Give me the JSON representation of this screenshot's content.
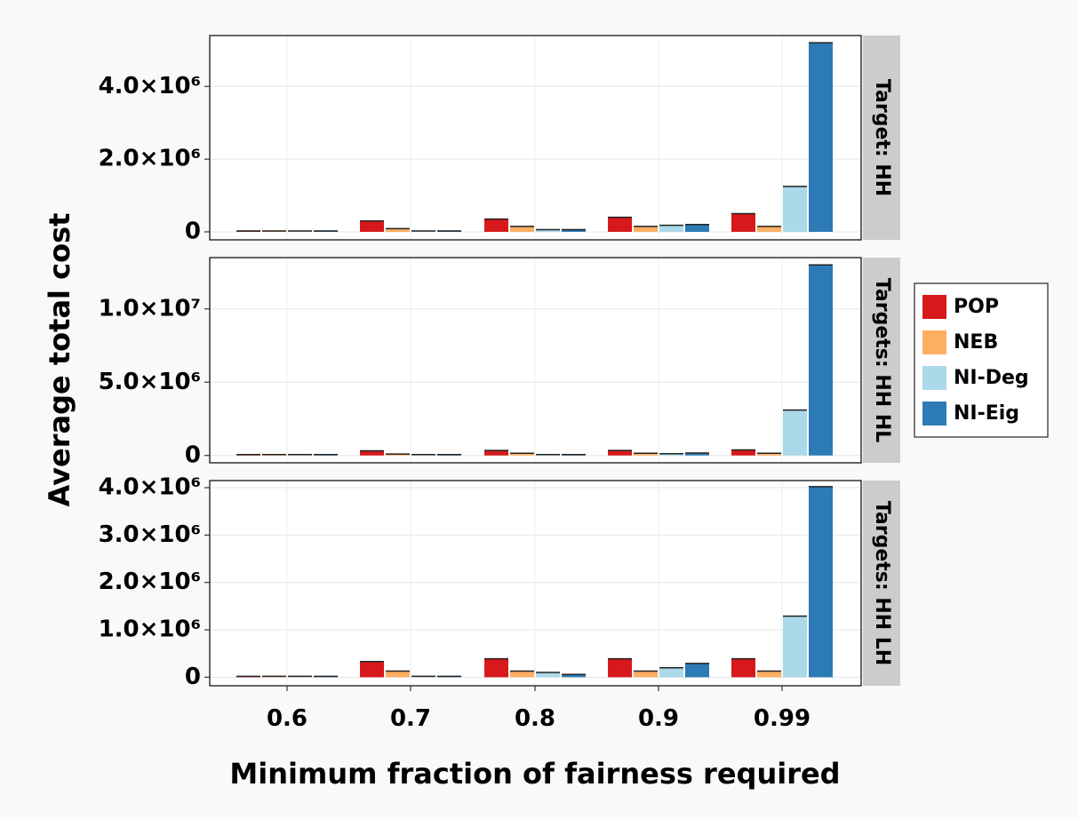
{
  "chart_data": {
    "type": "bar",
    "xlabel": "Minimum fraction of fairness required",
    "ylabel": "Average total cost",
    "categories": [
      "0.6",
      "0.7",
      "0.8",
      "0.9",
      "0.99"
    ],
    "legend": {
      "position": "right",
      "entries": [
        {
          "name": "POP",
          "color": "#d7191c"
        },
        {
          "name": "NEB",
          "color": "#fdae61"
        },
        {
          "name": "NI-Deg",
          "color": "#abd9e9"
        },
        {
          "name": "NI-Eig",
          "color": "#2c7bb6"
        }
      ]
    },
    "grid": true,
    "panels": [
      {
        "strip": "Target: HH",
        "ylim": [
          -220000,
          5400000
        ],
        "yticks": [
          0,
          2000000,
          4000000
        ],
        "ytick_labels": [
          "0",
          "2.0×10⁶",
          "4.0×10⁶"
        ],
        "series": [
          {
            "name": "POP",
            "values": [
              20000,
              300000,
              350000,
              400000,
              500000
            ]
          },
          {
            "name": "NEB",
            "values": [
              15000,
              90000,
              150000,
              150000,
              150000
            ]
          },
          {
            "name": "NI-Deg",
            "values": [
              10000,
              20000,
              60000,
              180000,
              1250000
            ]
          },
          {
            "name": "NI-Eig",
            "values": [
              10000,
              20000,
              60000,
              200000,
              5200000
            ]
          }
        ]
      },
      {
        "strip": "Targets: HH HL",
        "ylim": [
          -500000,
          13500000
        ],
        "yticks": [
          0,
          5000000,
          10000000
        ],
        "ytick_labels": [
          "0",
          "5.0×10⁶",
          "1.0×10⁷"
        ],
        "series": [
          {
            "name": "POP",
            "values": [
              20000,
              320000,
              340000,
              340000,
              380000
            ]
          },
          {
            "name": "NEB",
            "values": [
              15000,
              100000,
              150000,
              150000,
              150000
            ]
          },
          {
            "name": "NI-Deg",
            "values": [
              10000,
              20000,
              60000,
              120000,
              3100000
            ]
          },
          {
            "name": "NI-Eig",
            "values": [
              10000,
              20000,
              60000,
              170000,
              13000000
            ]
          }
        ]
      },
      {
        "strip": "Targets: HH LH",
        "ylim": [
          -180000,
          4150000
        ],
        "yticks": [
          0,
          1000000,
          2000000,
          3000000,
          4000000
        ],
        "ytick_labels": [
          "0",
          "1.0×10⁶",
          "2.0×10⁶",
          "3.0×10⁶",
          "4.0×10⁶"
        ],
        "series": [
          {
            "name": "POP",
            "values": [
              20000,
              330000,
              390000,
              390000,
              390000
            ]
          },
          {
            "name": "NEB",
            "values": [
              15000,
              130000,
              130000,
              130000,
              130000
            ]
          },
          {
            "name": "NI-Deg",
            "values": [
              10000,
              20000,
              100000,
              200000,
              1290000
            ]
          },
          {
            "name": "NI-Eig",
            "values": [
              10000,
              20000,
              60000,
              290000,
              4020000
            ]
          }
        ]
      }
    ]
  }
}
